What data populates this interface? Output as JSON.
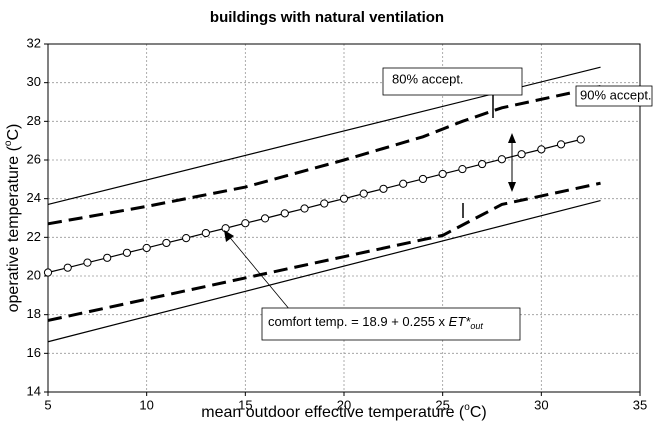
{
  "chart_data": {
    "type": "line",
    "title": "buildings with natural ventilation",
    "x_label": [
      "mean outdoor effective temperature (",
      "o",
      "C)"
    ],
    "y_label": [
      "operative temperature (",
      "o",
      "C)"
    ],
    "xlim": [
      5,
      35
    ],
    "xticks": [
      5,
      10,
      15,
      20,
      25,
      30,
      35
    ],
    "ylim": [
      14,
      32
    ],
    "yticks": [
      14,
      16,
      18,
      20,
      22,
      24,
      26,
      28,
      30,
      32
    ],
    "grid": true,
    "annotations": {
      "accept80": "80% accept.",
      "accept90": "90% accept.",
      "comfort": [
        "comfort temp. = 18.9 + 0.255 x ",
        "ET*",
        "out"
      ]
    },
    "series": [
      {
        "style": "solid",
        "color": "#000000",
        "x": [
          5,
          33
        ],
        "values": [
          23.7,
          30.8
        ]
      },
      {
        "style": "dashed",
        "color": "#000000",
        "x": [
          5,
          10,
          15,
          20,
          24,
          26,
          28,
          33
        ],
        "values": [
          22.7,
          23.6,
          24.6,
          26.0,
          27.2,
          28.0,
          28.7,
          29.8
        ]
      },
      {
        "style": "markers",
        "color": "#000000",
        "x": [
          5,
          6,
          7,
          8,
          9,
          10,
          11,
          12,
          13,
          14,
          15,
          16,
          17,
          18,
          19,
          20,
          21,
          22,
          23,
          24,
          25,
          26,
          27,
          28,
          29,
          30,
          31,
          32
        ],
        "values": [
          20.18,
          20.43,
          20.69,
          20.94,
          21.2,
          21.45,
          21.71,
          21.96,
          22.22,
          22.47,
          22.73,
          22.98,
          23.24,
          23.49,
          23.75,
          24.0,
          24.26,
          24.51,
          24.77,
          25.02,
          25.28,
          25.53,
          25.79,
          26.04,
          26.3,
          26.55,
          26.81,
          27.06
        ]
      },
      {
        "style": "dashed",
        "color": "#000000",
        "x": [
          5,
          10,
          15,
          20,
          25,
          28,
          33
        ],
        "values": [
          17.7,
          18.8,
          19.9,
          21.0,
          22.1,
          23.7,
          24.8
        ]
      },
      {
        "style": "solid",
        "color": "#000000",
        "x": [
          5,
          33
        ],
        "values": [
          16.6,
          23.9
        ]
      }
    ]
  }
}
